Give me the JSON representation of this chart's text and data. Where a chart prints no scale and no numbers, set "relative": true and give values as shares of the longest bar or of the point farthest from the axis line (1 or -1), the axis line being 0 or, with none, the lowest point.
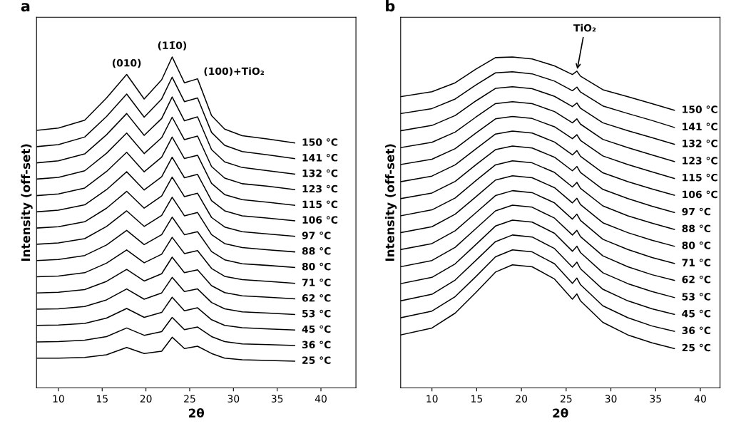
{
  "chart_data": [
    {
      "type": "line",
      "title": "a",
      "xlabel": "2θ",
      "ylabel": "Intensity (off-set)",
      "relative": true,
      "tick_labels": "x",
      "grid": false,
      "legend": false,
      "marker": "none",
      "line_style": "solid",
      "xlim": [
        7.5,
        44
      ],
      "xticks": [
        10,
        15,
        20,
        25,
        30,
        35,
        40
      ],
      "x": [
        7.5,
        10,
        13,
        15.5,
        17.8,
        19.8,
        21.8,
        23.0,
        24.4,
        25.9,
        27.5,
        29,
        31,
        34,
        37
      ],
      "annotations": [
        {
          "text": "(010)",
          "x": 17.8,
          "y": 0.947
        },
        {
          "text": "(11̄0)",
          "x": 23.0,
          "y": 1.0
        },
        {
          "text": "(100)+TiO₂",
          "x": 25.9,
          "y": 0.934
        }
      ],
      "series": [
        {
          "name": "25 °C",
          "color": "#000000",
          "values": [
            0.09,
            0.09,
            0.092,
            0.1,
            0.122,
            0.104,
            0.111,
            0.153,
            0.119,
            0.126,
            0.104,
            0.09,
            0.085,
            0.083,
            0.081
          ]
        },
        {
          "name": "36 °C",
          "color": "#000000",
          "values": [
            0.139,
            0.14,
            0.144,
            0.155,
            0.181,
            0.159,
            0.17,
            0.213,
            0.176,
            0.184,
            0.155,
            0.14,
            0.133,
            0.131,
            0.128
          ]
        },
        {
          "name": "45 °C",
          "color": "#000000",
          "values": [
            0.189,
            0.19,
            0.195,
            0.211,
            0.24,
            0.213,
            0.228,
            0.274,
            0.233,
            0.242,
            0.206,
            0.189,
            0.182,
            0.178,
            0.175
          ]
        },
        {
          "name": "53 °C",
          "color": "#000000",
          "values": [
            0.238,
            0.239,
            0.246,
            0.266,
            0.299,
            0.268,
            0.287,
            0.334,
            0.291,
            0.299,
            0.258,
            0.239,
            0.23,
            0.226,
            0.222
          ]
        },
        {
          "name": "62 °C",
          "color": "#000000",
          "values": [
            0.287,
            0.289,
            0.297,
            0.322,
            0.358,
            0.323,
            0.345,
            0.395,
            0.348,
            0.357,
            0.309,
            0.288,
            0.278,
            0.274,
            0.269
          ]
        },
        {
          "name": "71 °C",
          "color": "#000000",
          "values": [
            0.336,
            0.338,
            0.348,
            0.377,
            0.417,
            0.378,
            0.404,
            0.455,
            0.406,
            0.415,
            0.361,
            0.337,
            0.327,
            0.322,
            0.316
          ]
        },
        {
          "name": "80 °C",
          "color": "#000000",
          "values": [
            0.385,
            0.388,
            0.4,
            0.432,
            0.476,
            0.433,
            0.463,
            0.516,
            0.463,
            0.472,
            0.412,
            0.387,
            0.375,
            0.37,
            0.364
          ]
        },
        {
          "name": "88 °C",
          "color": "#000000",
          "values": [
            0.434,
            0.438,
            0.451,
            0.488,
            0.535,
            0.488,
            0.521,
            0.576,
            0.52,
            0.53,
            0.463,
            0.436,
            0.424,
            0.417,
            0.411
          ]
        },
        {
          "name": "97 °C",
          "color": "#000000",
          "values": [
            0.483,
            0.487,
            0.502,
            0.543,
            0.594,
            0.543,
            0.58,
            0.637,
            0.578,
            0.588,
            0.515,
            0.486,
            0.472,
            0.465,
            0.458
          ]
        },
        {
          "name": "106 °C",
          "color": "#000000",
          "values": [
            0.532,
            0.537,
            0.553,
            0.599,
            0.653,
            0.598,
            0.638,
            0.697,
            0.635,
            0.645,
            0.566,
            0.535,
            0.52,
            0.513,
            0.505
          ]
        },
        {
          "name": "115 °C",
          "color": "#000000",
          "values": [
            0.581,
            0.586,
            0.604,
            0.654,
            0.712,
            0.653,
            0.697,
            0.758,
            0.693,
            0.703,
            0.618,
            0.584,
            0.569,
            0.561,
            0.552
          ]
        },
        {
          "name": "123 °C",
          "color": "#000000",
          "values": [
            0.631,
            0.636,
            0.656,
            0.709,
            0.77,
            0.708,
            0.756,
            0.818,
            0.75,
            0.761,
            0.669,
            0.634,
            0.617,
            0.609,
            0.599
          ]
        },
        {
          "name": "132 °C",
          "color": "#000000",
          "values": [
            0.68,
            0.686,
            0.707,
            0.765,
            0.829,
            0.763,
            0.814,
            0.879,
            0.807,
            0.819,
            0.72,
            0.683,
            0.666,
            0.656,
            0.646
          ]
        },
        {
          "name": "141 °C",
          "color": "#000000",
          "values": [
            0.729,
            0.735,
            0.758,
            0.82,
            0.888,
            0.818,
            0.873,
            0.939,
            0.865,
            0.876,
            0.772,
            0.733,
            0.714,
            0.704,
            0.693
          ]
        },
        {
          "name": "150 °C",
          "color": "#000000",
          "values": [
            0.778,
            0.785,
            0.809,
            0.876,
            0.947,
            0.873,
            0.931,
            1.0,
            0.922,
            0.934,
            0.823,
            0.782,
            0.762,
            0.752,
            0.74
          ]
        }
      ]
    },
    {
      "type": "line",
      "title": "b",
      "xlabel": "2θ",
      "ylabel": "Intensity (off-set)",
      "relative": true,
      "tick_labels": "x",
      "grid": false,
      "legend": false,
      "marker": "none",
      "line_style": "solid",
      "xlim": [
        6.5,
        42.2
      ],
      "xticks": [
        10,
        15,
        20,
        25,
        30,
        35,
        40
      ],
      "x": [
        6.5,
        10,
        12.6,
        14.9,
        17.1,
        19.0,
        21.2,
        23.7,
        25.7,
        26.2,
        26.6,
        29.1,
        31.9,
        34.6,
        37.1
      ],
      "annotations": [
        {
          "text": "TiO₂",
          "x": 26.2,
          "y": 0.957
        }
      ],
      "series": [
        {
          "name": "25 °C",
          "color": "#000000",
          "values": [
            0.16,
            0.181,
            0.226,
            0.288,
            0.35,
            0.372,
            0.366,
            0.329,
            0.268,
            0.284,
            0.263,
            0.198,
            0.16,
            0.136,
            0.119
          ]
        },
        {
          "name": "36 °C",
          "color": "#000000",
          "values": [
            0.212,
            0.232,
            0.276,
            0.336,
            0.396,
            0.417,
            0.411,
            0.375,
            0.316,
            0.332,
            0.312,
            0.248,
            0.212,
            0.187,
            0.171
          ]
        },
        {
          "name": "45 °C",
          "color": "#000000",
          "values": [
            0.263,
            0.283,
            0.326,
            0.385,
            0.442,
            0.462,
            0.456,
            0.421,
            0.365,
            0.38,
            0.36,
            0.298,
            0.263,
            0.239,
            0.222
          ]
        },
        {
          "name": "53 °C",
          "color": "#000000",
          "values": [
            0.315,
            0.334,
            0.375,
            0.433,
            0.489,
            0.507,
            0.501,
            0.467,
            0.413,
            0.428,
            0.409,
            0.348,
            0.315,
            0.291,
            0.273
          ]
        },
        {
          "name": "62 °C",
          "color": "#000000",
          "values": [
            0.366,
            0.385,
            0.425,
            0.481,
            0.535,
            0.552,
            0.546,
            0.513,
            0.462,
            0.476,
            0.457,
            0.399,
            0.366,
            0.342,
            0.325
          ]
        },
        {
          "name": "71 °C",
          "color": "#000000",
          "values": [
            0.418,
            0.436,
            0.475,
            0.529,
            0.581,
            0.596,
            0.59,
            0.559,
            0.51,
            0.525,
            0.506,
            0.449,
            0.418,
            0.394,
            0.376
          ]
        },
        {
          "name": "80 °C",
          "color": "#000000",
          "values": [
            0.469,
            0.487,
            0.525,
            0.577,
            0.628,
            0.641,
            0.635,
            0.605,
            0.559,
            0.573,
            0.554,
            0.499,
            0.469,
            0.446,
            0.428
          ]
        },
        {
          "name": "88 °C",
          "color": "#000000",
          "values": [
            0.52,
            0.538,
            0.574,
            0.626,
            0.674,
            0.686,
            0.68,
            0.651,
            0.607,
            0.621,
            0.603,
            0.55,
            0.52,
            0.498,
            0.479
          ]
        },
        {
          "name": "97 °C",
          "color": "#000000",
          "values": [
            0.572,
            0.589,
            0.624,
            0.674,
            0.72,
            0.731,
            0.725,
            0.697,
            0.656,
            0.669,
            0.651,
            0.6,
            0.572,
            0.549,
            0.53
          ]
        },
        {
          "name": "106 °C",
          "color": "#000000",
          "values": [
            0.623,
            0.64,
            0.674,
            0.722,
            0.767,
            0.776,
            0.77,
            0.743,
            0.704,
            0.717,
            0.7,
            0.65,
            0.623,
            0.601,
            0.582
          ]
        },
        {
          "name": "115 °C",
          "color": "#000000",
          "values": [
            0.675,
            0.691,
            0.723,
            0.77,
            0.813,
            0.82,
            0.814,
            0.789,
            0.753,
            0.765,
            0.748,
            0.701,
            0.675,
            0.653,
            0.633
          ]
        },
        {
          "name": "123 °C",
          "color": "#000000",
          "values": [
            0.726,
            0.742,
            0.773,
            0.818,
            0.859,
            0.865,
            0.859,
            0.835,
            0.801,
            0.813,
            0.797,
            0.751,
            0.726,
            0.704,
            0.684
          ]
        },
        {
          "name": "132 °C",
          "color": "#000000",
          "values": [
            0.777,
            0.793,
            0.823,
            0.867,
            0.905,
            0.91,
            0.904,
            0.881,
            0.85,
            0.861,
            0.845,
            0.801,
            0.777,
            0.756,
            0.736
          ]
        },
        {
          "name": "141 °C",
          "color": "#000000",
          "values": [
            0.829,
            0.844,
            0.873,
            0.915,
            0.952,
            0.955,
            0.949,
            0.927,
            0.898,
            0.909,
            0.894,
            0.852,
            0.829,
            0.808,
            0.787
          ]
        },
        {
          "name": "150 °C",
          "color": "#000000",
          "values": [
            0.88,
            0.895,
            0.922,
            0.963,
            0.998,
            1.0,
            0.994,
            0.973,
            0.947,
            0.957,
            0.942,
            0.901,
            0.88,
            0.859,
            0.839
          ]
        }
      ]
    }
  ]
}
